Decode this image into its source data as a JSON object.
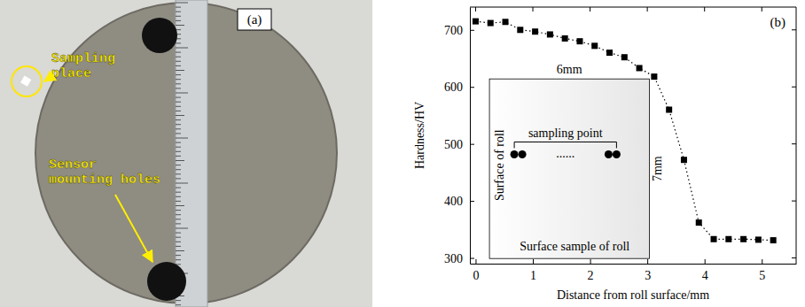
{
  "chart_data": {
    "type": "line",
    "xlabel": "Distance from roll surface/mm",
    "ylabel": "Hardness/HV",
    "panel": "(b)",
    "x": [
      0,
      0.26,
      0.52,
      0.78,
      1.04,
      1.3,
      1.56,
      1.82,
      2.08,
      2.34,
      2.6,
      2.86,
      3.12,
      3.38,
      3.64,
      3.9,
      4.16,
      4.42,
      4.68,
      4.94,
      5.2
    ],
    "values": [
      715,
      712,
      714,
      700,
      697,
      692,
      685,
      680,
      672,
      660,
      652,
      633,
      618,
      560,
      472,
      362,
      333,
      333,
      333,
      332,
      331
    ],
    "color": "#000000",
    "marker": "square",
    "line_style": "dotted",
    "xlim": [
      -0.1,
      5.6
    ],
    "xticks": [
      0,
      1,
      2,
      3,
      4,
      5
    ],
    "ylim": [
      290,
      740
    ],
    "yticks": [
      300,
      400,
      500,
      600,
      700
    ],
    "grid": false,
    "inset": {
      "width_label": "6mm",
      "height_label": "7mm",
      "left_label": "Surface of roll",
      "bracket_label": "sampling point",
      "dots_label": "......",
      "bottom_label": "Surface sample of roll"
    }
  },
  "photo_panel": {
    "label": "(a)",
    "annotations": [
      "Sampling place",
      "Sensor mounting holes"
    ]
  }
}
